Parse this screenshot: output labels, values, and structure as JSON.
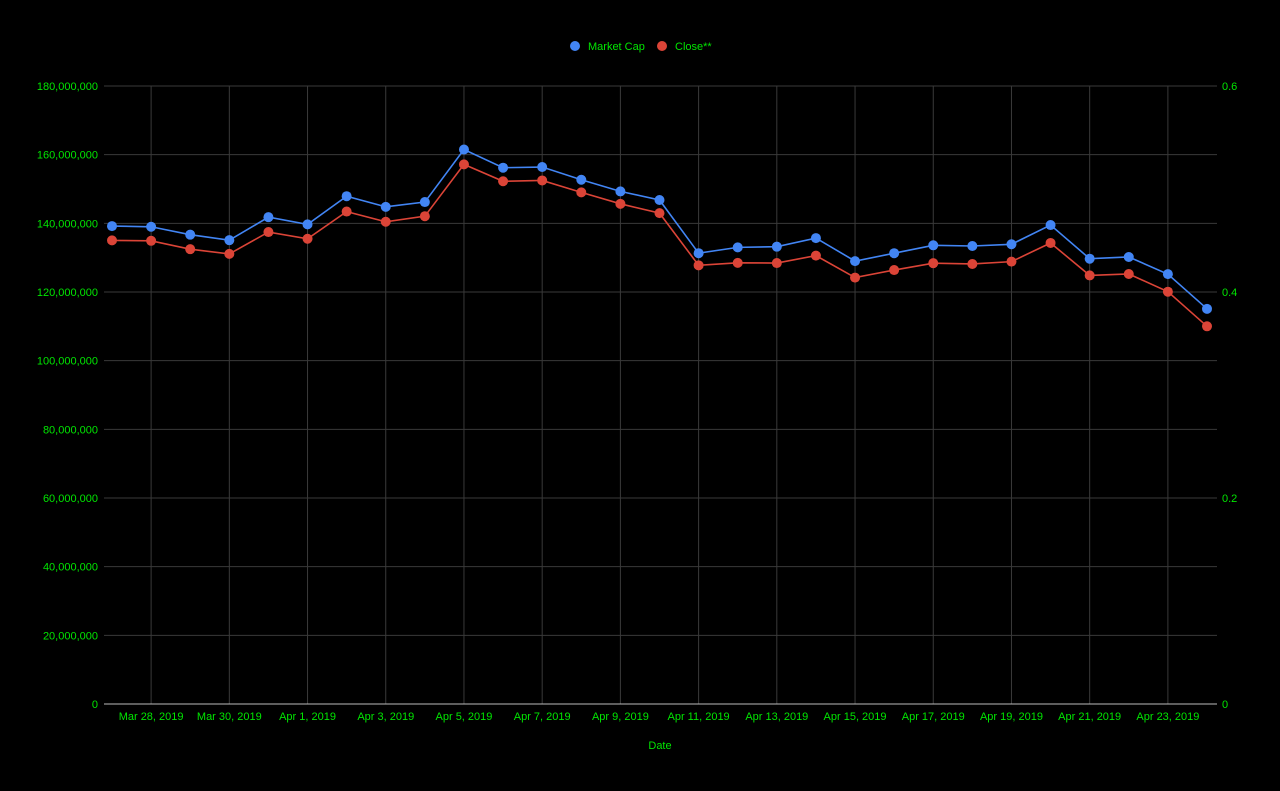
{
  "colors": {
    "background": "#000000",
    "text": "#00E600",
    "grid": "#3A3A3A",
    "baseline": "#BDBDBD",
    "market_cap": "#4285F4",
    "close": "#DB4437"
  },
  "chart_data": {
    "type": "line",
    "xlabel": "Date",
    "legend_position": "top-center",
    "grid": true,
    "x": [
      "Mar 27, 2019",
      "Mar 28, 2019",
      "Mar 29, 2019",
      "Mar 30, 2019",
      "Mar 31, 2019",
      "Apr 1, 2019",
      "Apr 2, 2019",
      "Apr 3, 2019",
      "Apr 4, 2019",
      "Apr 5, 2019",
      "Apr 6, 2019",
      "Apr 7, 2019",
      "Apr 8, 2019",
      "Apr 9, 2019",
      "Apr 10, 2019",
      "Apr 11, 2019",
      "Apr 12, 2019",
      "Apr 13, 2019",
      "Apr 14, 2019",
      "Apr 15, 2019",
      "Apr 16, 2019",
      "Apr 17, 2019",
      "Apr 18, 2019",
      "Apr 19, 2019",
      "Apr 20, 2019",
      "Apr 21, 2019",
      "Apr 22, 2019",
      "Apr 23, 2019",
      "Apr 24, 2019"
    ],
    "x_tick_labels": [
      "Mar 28, 2019",
      "Mar 30, 2019",
      "Apr 1, 2019",
      "Apr 3, 2019",
      "Apr 5, 2019",
      "Apr 7, 2019",
      "Apr 9, 2019",
      "Apr 11, 2019",
      "Apr 13, 2019",
      "Apr 15, 2019",
      "Apr 17, 2019",
      "Apr 19, 2019",
      "Apr 21, 2019",
      "Apr 23, 2019"
    ],
    "y_left": {
      "ylim": [
        0,
        180000000
      ],
      "tick_labels": [
        "0",
        "20,000,000",
        "40,000,000",
        "60,000,000",
        "80,000,000",
        "100,000,000",
        "120,000,000",
        "140,000,000",
        "160,000,000",
        "180,000,000"
      ]
    },
    "y_right": {
      "ylim": [
        0,
        0.6
      ],
      "tick_labels": [
        "0",
        "0.2",
        "0.4",
        "0.6"
      ]
    },
    "series": [
      {
        "name": "Market Cap",
        "axis": "left",
        "values": [
          139200000,
          139000000,
          136700000,
          135100000,
          141800000,
          139700000,
          147900000,
          144800000,
          146200000,
          161500000,
          156200000,
          156400000,
          152700000,
          149300000,
          146800000,
          131300000,
          133000000,
          133200000,
          135700000,
          129000000,
          131300000,
          133600000,
          133400000,
          133900000,
          139500000,
          129700000,
          130200000,
          125200000,
          115100000
        ]
      },
      {
        "name": "Close**",
        "axis": "right",
        "values": [
          0.4501,
          0.4497,
          0.4416,
          0.437,
          0.4582,
          0.4517,
          0.4781,
          0.4682,
          0.4736,
          0.5239,
          0.5075,
          0.5083,
          0.4967,
          0.4856,
          0.4766,
          0.4259,
          0.4283,
          0.4281,
          0.4353,
          0.414,
          0.4213,
          0.428,
          0.4272,
          0.4295,
          0.4476,
          0.4161,
          0.4175,
          0.4003,
          0.3667
        ]
      }
    ]
  }
}
